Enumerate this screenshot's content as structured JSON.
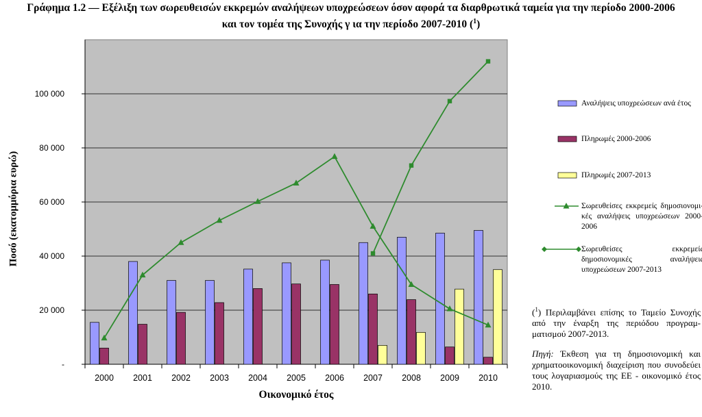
{
  "title_line1": "Γράφημα 1.2 — Εξέλιξη των σωρευθεισών εκκρεμών αναλήψεων υποχρεώσεων όσον αφορά τα διαρθρωτικά ταμεία για την περίοδο 2000-2006",
  "title_line2": "και τον τομέα της Συνοχής γ ια την περίοδο 2007-2010 (1)",
  "footnote": "(1) Περιλαμβάνει επίσης το Ταμείο Συνοχής από την έναρξη της περιόδου προγραμματισμού 2007-2013.",
  "footnote_marker": "1",
  "footnote_text": "Περιλαμβάνει επίσης το Ταμείο Συνοχής από την έναρξη της περιόδου προγραμ-ματισμού 2007-2013.",
  "source_label": "Πηγή:",
  "source_text": "Έκθεση για τη δημοσιονομική και χρηματοοικονομική διαχείριση που συνοδεύει τους λογαριασμούς της ΕΕ - οικονομικό έτος 2010.",
  "colors": {
    "plot_bg": "#c0c0c0",
    "bar_commitments": "#9999ff",
    "bar_pay_2000_2006": "#993366",
    "bar_pay_2007_2013": "#ffff99",
    "line": "#2e8b2e"
  },
  "chart_data": {
    "type": "bar",
    "title": "Εξέλιξη των σωρευθεισών εκκρεμών αναλήψεων υποχρεώσεων όσον αφορά τα διαρθρωτικά ταμεία για την περίοδο 2000-2006 και τον τομέα της Συνοχής γ ια την περίοδο 2007-2010",
    "xlabel": "Οικονομικό έτος",
    "ylabel": "Ποσό (εκατομμύρια ευρώ)",
    "ylim": [
      0,
      120000
    ],
    "yticks": [
      0,
      20000,
      40000,
      60000,
      80000,
      100000
    ],
    "ytick_labels": [
      "-",
      "20 000",
      "40 000",
      "60 000",
      "80 000",
      "100 000"
    ],
    "categories": [
      "2000",
      "2001",
      "2002",
      "2003",
      "2004",
      "2005",
      "2006",
      "2007",
      "2008",
      "2009",
      "2010"
    ],
    "grid": true,
    "legend_position": "right",
    "series": [
      {
        "name": "Αναλήψεις υποχρεώσεων ανά έτος",
        "kind": "bar",
        "values": [
          15500,
          38000,
          31000,
          31000,
          35200,
          37500,
          38500,
          45000,
          47000,
          48500,
          49500
        ]
      },
      {
        "name": "Πληρωμές 2000-2006",
        "kind": "bar",
        "values": [
          6000,
          14800,
          19200,
          22800,
          28000,
          29700,
          29500,
          26000,
          23900,
          6400,
          2600
        ]
      },
      {
        "name": "Πληρωμές 2007-2013",
        "kind": "bar",
        "values": [
          null,
          null,
          null,
          null,
          null,
          null,
          null,
          7000,
          11800,
          27800,
          35000
        ]
      },
      {
        "name": "Σωρευθείσες εκκρεμείς δημοσιονομικές αναλήψεις υποχρεώσεων 2000-2006",
        "kind": "line",
        "marker": "triangle",
        "values": [
          9700,
          33000,
          45000,
          53200,
          60200,
          67000,
          76800,
          51000,
          29500,
          20500,
          14500
        ]
      },
      {
        "name": "Σωρευθείσες εκκρεμείς δημοσιονομικές αναλήψεις υποχρεώσεων 2007-2013",
        "kind": "line",
        "marker": "square",
        "values": [
          null,
          null,
          null,
          null,
          null,
          null,
          null,
          41000,
          73500,
          97300,
          112000
        ]
      }
    ]
  },
  "legend": {
    "item1": "Αναλήψεις υποχρεώσεων ανά έτος",
    "item2": "Πληρωμές 2000-2006",
    "item3": "Πληρωμές 2007-2013",
    "item4": "Σωρευθείσες εκκρεμείς δημοσιονομι-κές αναλήψεις υποχρεώσεων 2000-2006",
    "item5": "Σωρευθείσες εκκρεμείς δημοσιονομικές αναλήψεις υποχρεώσεων 2007-2013"
  }
}
